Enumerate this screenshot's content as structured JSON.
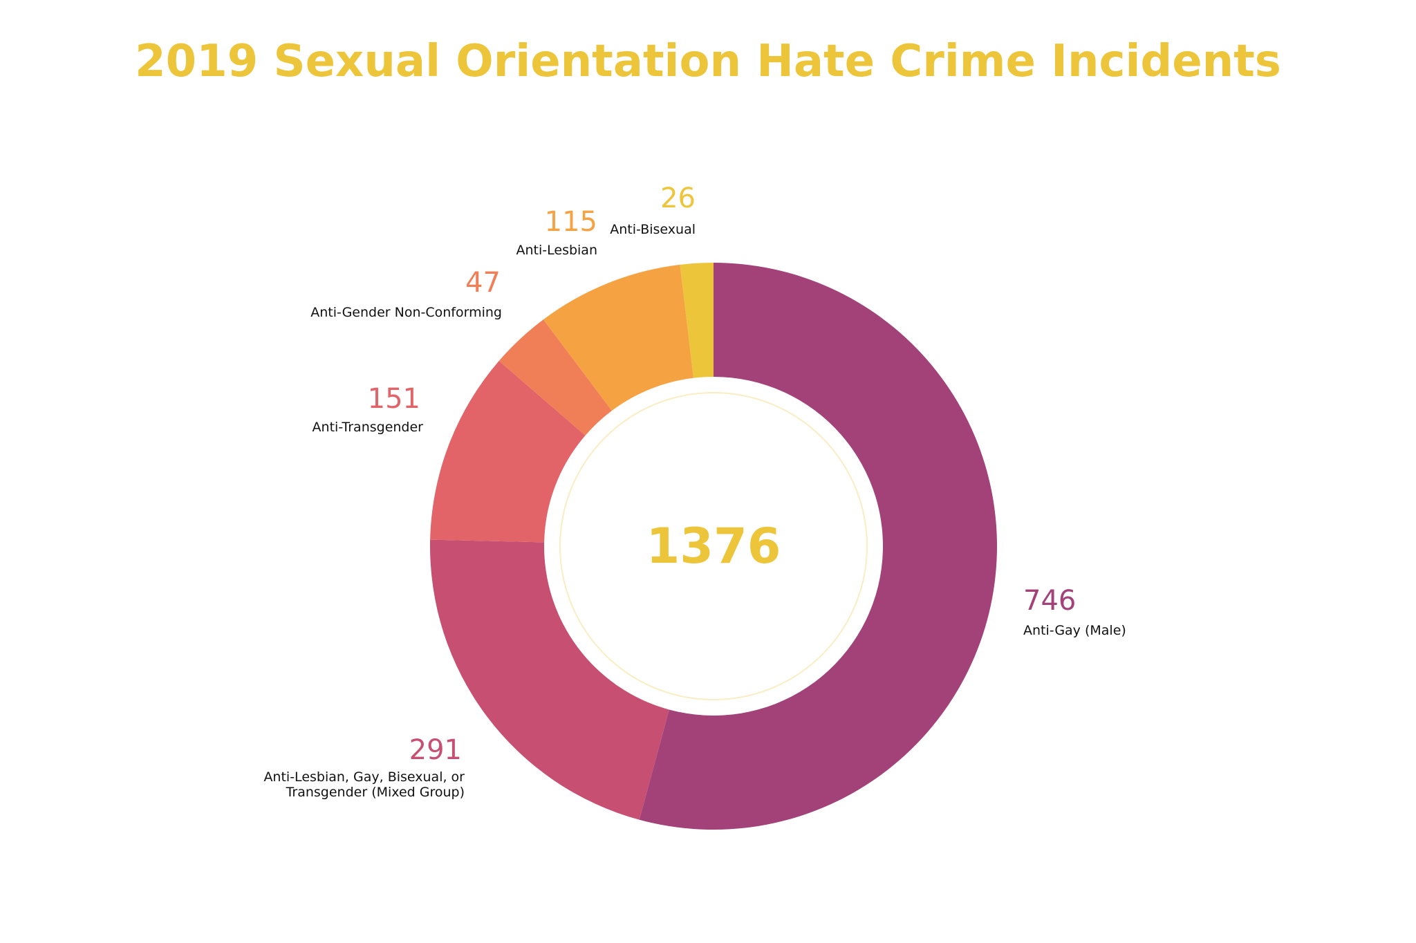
{
  "chart_data": {
    "type": "pie",
    "title": "2019 Sexual Orientation Hate Crime Incidents",
    "total": "1376",
    "slices": [
      {
        "label": "Anti-Bisexual",
        "value": 26,
        "color": "#EDC53A"
      },
      {
        "label": "Anti-Gay (Male)",
        "value": 746,
        "color": "#A24278"
      },
      {
        "label": "Anti-Lesbian, Gay, Bisexual, or Transgender (Mixed Group)",
        "label_lines": [
          "Anti-Lesbian, Gay, Bisexual, or",
          "Transgender (Mixed Group)"
        ],
        "value": 291,
        "color": "#C64F72"
      },
      {
        "label": "Anti-Transgender",
        "value": 151,
        "color": "#E26468"
      },
      {
        "label": "Anti-Gender Non-Conforming",
        "value": 47,
        "color": "#F07F57"
      },
      {
        "label": "Anti-Lesbian",
        "value": 115,
        "color": "#F5A243"
      }
    ]
  }
}
